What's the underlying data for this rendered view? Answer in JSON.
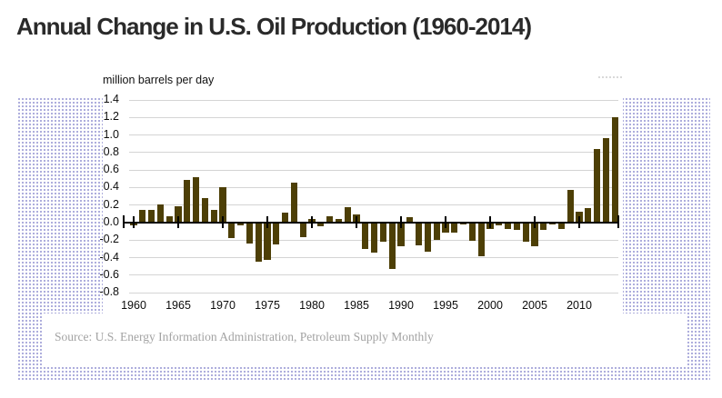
{
  "title": "Annual Change in U.S. Oil Production (1960-2014)",
  "source": "Source: U.S. Energy Information Administration, Petroleum Supply Monthly",
  "colors": {
    "bar": "#4d3f06",
    "grid": "#d4d4d4",
    "axis": "#000000",
    "dots": "#a8a8da",
    "title_text": "#2a2a2a",
    "source_text": "#a3a3a3"
  },
  "chart_data": {
    "type": "bar",
    "title": "Annual Change in U.S. Oil Production (1960-2014)",
    "y_axis_title": "million barrels per day",
    "xlabel": "",
    "ylabel": "million barrels per day",
    "ylim": [
      -0.8,
      1.4
    ],
    "grid": "horizontal",
    "legend": "none",
    "bar_color": "#4d3f06",
    "y_ticks": [
      1.4,
      1.2,
      1.0,
      0.8,
      0.6,
      0.4,
      0.2,
      0.0,
      -0.2,
      -0.4,
      -0.6,
      -0.8
    ],
    "x_ticks": [
      1960,
      1965,
      1970,
      1975,
      1980,
      1985,
      1990,
      1995,
      2000,
      2005,
      2010
    ],
    "x": [
      1960,
      1961,
      1962,
      1963,
      1964,
      1965,
      1966,
      1967,
      1968,
      1969,
      1970,
      1971,
      1972,
      1973,
      1974,
      1975,
      1976,
      1977,
      1978,
      1979,
      1980,
      1981,
      1982,
      1983,
      1984,
      1985,
      1986,
      1987,
      1988,
      1989,
      1990,
      1991,
      1992,
      1993,
      1994,
      1995,
      1996,
      1997,
      1998,
      1999,
      2000,
      2001,
      2002,
      2003,
      2004,
      2005,
      2006,
      2007,
      2008,
      2009,
      2010,
      2011,
      2012,
      2013,
      2014
    ],
    "values": [
      -0.02,
      0.15,
      0.15,
      0.21,
      0.07,
      0.19,
      0.49,
      0.52,
      0.28,
      0.15,
      0.4,
      -0.17,
      -0.02,
      -0.23,
      -0.43,
      -0.41,
      -0.24,
      0.11,
      0.46,
      -0.16,
      0.04,
      -0.03,
      0.07,
      0.04,
      0.18,
      0.09,
      -0.29,
      -0.33,
      -0.21,
      -0.52,
      -0.26,
      0.06,
      -0.25,
      -0.32,
      -0.19,
      -0.1,
      -0.1,
      -0.01,
      -0.2,
      -0.37,
      -0.06,
      -0.02,
      -0.06,
      -0.07,
      -0.21,
      -0.26,
      -0.07,
      -0.01,
      -0.06,
      0.37,
      0.13,
      0.17,
      0.84,
      0.97,
      1.2
    ]
  }
}
